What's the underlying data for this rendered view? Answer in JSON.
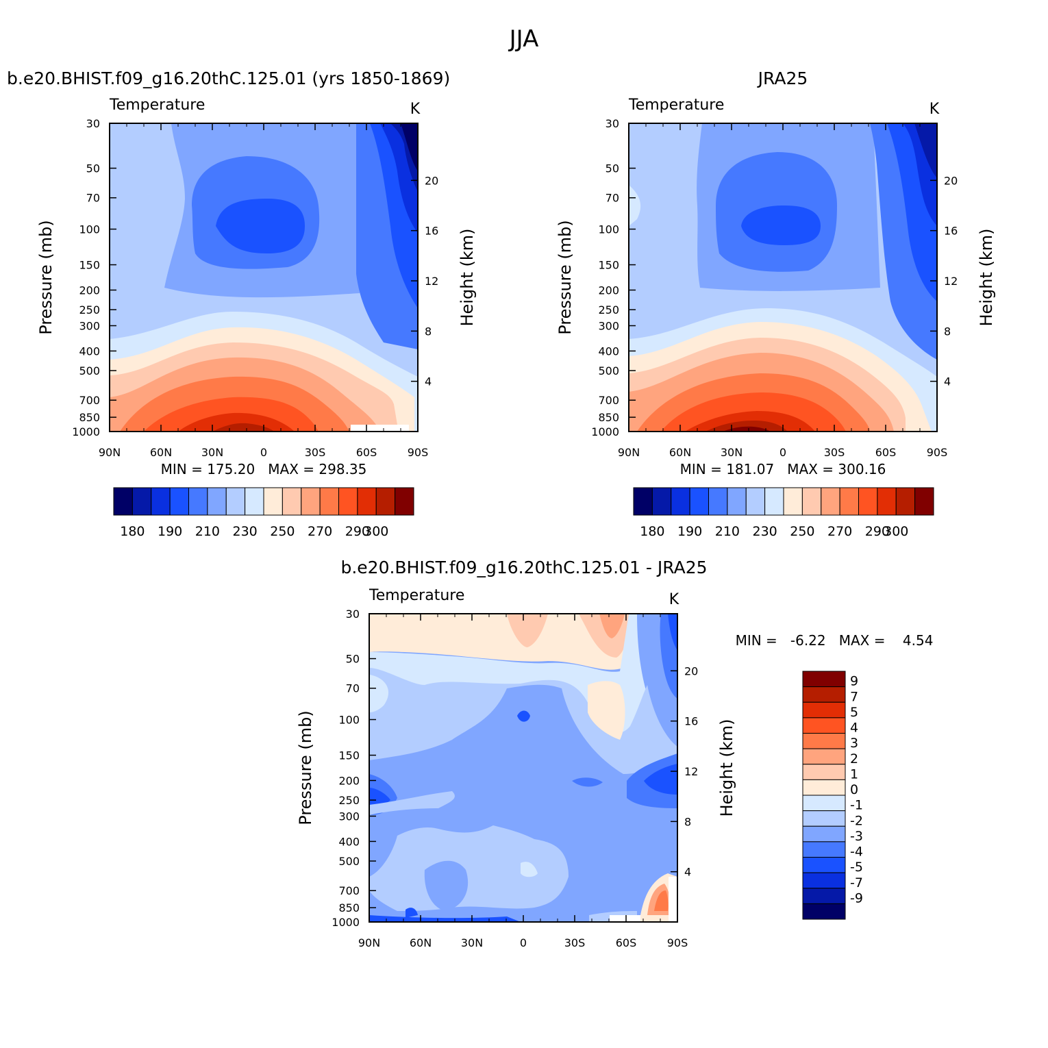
{
  "figure": {
    "title": "JJA"
  },
  "palette": {
    "levels16": [
      "#000066",
      "#0519a8",
      "#0a30e0",
      "#1a52ff",
      "#4679ff",
      "#80a6ff",
      "#b3cdff",
      "#d6e9ff",
      "#ffecd9",
      "#ffcab0",
      "#ffa47e",
      "#ff7a48",
      "#ff5422",
      "#e22e05",
      "#b51e00",
      "#800000"
    ]
  },
  "chart_data": [
    {
      "type": "heatmap",
      "name": "model",
      "title": "b.e20.BHIST.f09_g16.20thC.125.01 (yrs 1850-1869)",
      "variable": "Temperature",
      "units": "K",
      "xlabel": "",
      "ylabel": "Pressure (mb)",
      "y2label": "Height (km)",
      "x_ticks": [
        "90N",
        "60N",
        "30N",
        "0",
        "30S",
        "60S",
        "90S"
      ],
      "y_ticks": [
        30,
        50,
        70,
        100,
        150,
        200,
        250,
        300,
        400,
        500,
        700,
        850,
        1000
      ],
      "y2_ticks": [
        4,
        8,
        12,
        16,
        20
      ],
      "min_label": "MIN =",
      "min": "175.20",
      "max_label": "MAX =",
      "max": "298.35",
      "colorbar_labels": [
        "180",
        "190",
        "210",
        "230",
        "250",
        "270",
        "290",
        "300"
      ],
      "levels": [
        180,
        185,
        190,
        200,
        210,
        220,
        230,
        240,
        250,
        260,
        270,
        280,
        290,
        295,
        300
      ]
    },
    {
      "type": "heatmap",
      "name": "obs",
      "title": "JRA25",
      "variable": "Temperature",
      "units": "K",
      "xlabel": "",
      "ylabel": "Pressure (mb)",
      "y2label": "Height (km)",
      "x_ticks": [
        "90N",
        "60N",
        "30N",
        "0",
        "30S",
        "60S",
        "90S"
      ],
      "y_ticks": [
        30,
        50,
        70,
        100,
        150,
        200,
        250,
        300,
        400,
        500,
        700,
        850,
        1000
      ],
      "y2_ticks": [
        4,
        8,
        12,
        16,
        20
      ],
      "min_label": "MIN =",
      "min": "181.07",
      "max_label": "MAX =",
      "max": "300.16",
      "colorbar_labels": [
        "180",
        "190",
        "210",
        "230",
        "250",
        "270",
        "290",
        "300"
      ],
      "levels": [
        180,
        185,
        190,
        200,
        210,
        220,
        230,
        240,
        250,
        260,
        270,
        280,
        290,
        295,
        300
      ]
    },
    {
      "type": "heatmap",
      "name": "diff",
      "title": "b.e20.BHIST.f09_g16.20thC.125.01 - JRA25",
      "variable": "Temperature",
      "units": "K",
      "xlabel": "",
      "ylabel": "Pressure (mb)",
      "y2label": "Height (km)",
      "x_ticks": [
        "90N",
        "60N",
        "30N",
        "0",
        "30S",
        "60S",
        "90S"
      ],
      "y_ticks": [
        30,
        50,
        70,
        100,
        150,
        200,
        250,
        300,
        400,
        500,
        700,
        850,
        1000
      ],
      "y2_ticks": [
        4,
        8,
        12,
        16,
        20
      ],
      "min_label": "MIN =",
      "min": "-6.22",
      "max_label": "MAX =",
      "max": "4.54",
      "colorbar_labels": [
        "9",
        "7",
        "5",
        "4",
        "3",
        "2",
        "1",
        "0",
        "-1",
        "-2",
        "-3",
        "-4",
        "-5",
        "-7",
        "-9"
      ],
      "levels": [
        -9,
        -7,
        -5,
        -4,
        -3,
        -2,
        -1,
        0,
        1,
        2,
        3,
        4,
        5,
        7,
        9
      ]
    }
  ]
}
